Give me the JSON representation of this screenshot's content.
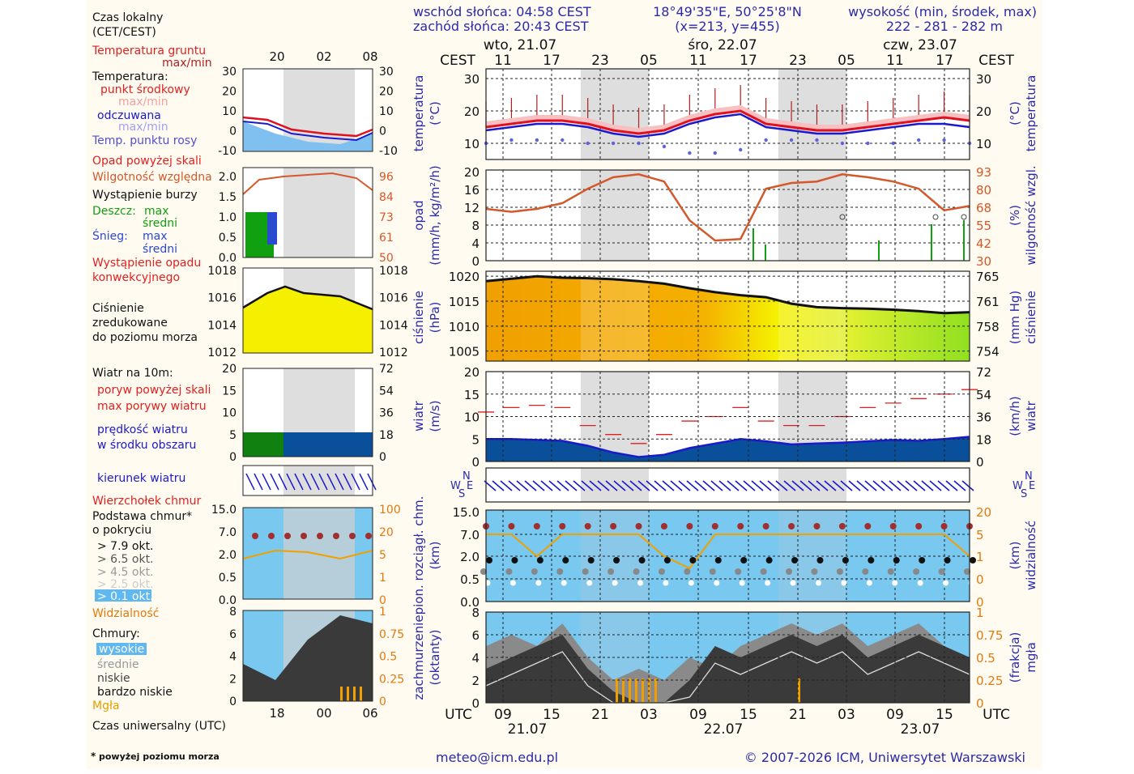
{
  "header": {
    "sunrise": "wschód słońca: 04:58 CEST",
    "sunset": "zachód słońca: 20:43 CEST",
    "coords": "18°49'35\"E, 50°25'8\"N",
    "grid": "(x=213, y=455)",
    "elevation_label": "wysokość (min, środek, max)",
    "elevation_values": "222 - 281 - 282 m"
  },
  "footer": {
    "email": "meteo@icm.edu.pl",
    "copyright": "© 2007-2026 ICM, Uniwersytet Warszawski",
    "footnote_star": "*",
    "footnote": "powyżej poziomu morza"
  },
  "time_axis": {
    "cest_label": "CEST",
    "utc_label": "UTC",
    "days_top": [
      "wto, 21.07",
      "śro, 22.07",
      "czw, 23.07"
    ],
    "hours_cest": [
      "11",
      "17",
      "23",
      "05",
      "11",
      "17",
      "23",
      "05",
      "11",
      "17"
    ],
    "hours_utc": [
      "09",
      "15",
      "21",
      "03",
      "09",
      "15",
      "21",
      "03",
      "09",
      "15"
    ],
    "days_bottom": [
      "21.07",
      "22.07",
      "23.07"
    ]
  },
  "legend": {
    "local_time_label": "Czas lokalny",
    "local_time_sub": "(CET/CEST)",
    "local_hours": [
      "20",
      "02",
      "08"
    ],
    "utc_time_label": "Czas uniwersalny (UTC)",
    "utc_hours": [
      "18",
      "00",
      "06"
    ],
    "temp": {
      "ground": "Temperatura gruntu",
      "ground_mm": "max/min",
      "title": "Temperatura:",
      "mid": "punkt środkowy",
      "mid_mm": "max/min",
      "felt": "odczuwana",
      "felt_mm": "max/min",
      "dew": "Temp. punktu rosy",
      "ticks_left": [
        "30",
        "20",
        "10",
        "0",
        "-10"
      ],
      "ticks_right": [
        "30",
        "20",
        "10",
        "0",
        "-10"
      ]
    },
    "precip": {
      "over": "Opad powyżej skali",
      "humidity": "Wilgotność względna",
      "storm": "Wystąpienie burzy",
      "rain": "Deszcz:",
      "rain_max": "max",
      "rain_avg": "średni",
      "snow": "Śnieg:",
      "snow_max": "max",
      "snow_avg": "średni",
      "convective1": "Wystąpienie opadu",
      "convective2": "konwekcyjnego",
      "ticks_left": [
        "2.0",
        "1.5",
        "1.0",
        "0.5",
        "0.0"
      ],
      "ticks_right": [
        "96",
        "84",
        "73",
        "61",
        "50"
      ]
    },
    "pressure": {
      "l1": "Ciśnienie",
      "l2": "zredukowane",
      "l3": "do poziomu morza",
      "ticks_left": [
        "1018",
        "1016",
        "1014",
        "1012"
      ],
      "ticks_right": [
        "1018",
        "1016",
        "1014",
        "1012"
      ]
    },
    "wind": {
      "title": "Wiatr na 10m:",
      "gust_over": "poryw powyżej skali",
      "gust_max": "max porywy wiatru",
      "speed1": "prędkość wiatru",
      "speed2": "w środku obszaru",
      "ticks_left": [
        "20",
        "15",
        "10",
        "5",
        "0"
      ],
      "ticks_right": [
        "72",
        "54",
        "36",
        "18",
        "0"
      ]
    },
    "direction": {
      "label": "kierunek wiatru"
    },
    "cloud": {
      "top": "Wierzchołek chmur",
      "base1": "Podstawa chmur*",
      "base2": "o pokryciu",
      "o79": "> 7.9 okt.",
      "o65": "> 6.5 okt.",
      "o45": "> 4.5 okt.",
      "o25": "> 2.5 okt.",
      "o01": "> 0.1 okt.",
      "visibility": "Widzialność",
      "ticks_left": [
        "15.0",
        "7.0",
        "2.0",
        "0.5",
        "0.0"
      ],
      "ticks_right": [
        "100",
        "20",
        "5",
        "1",
        "0"
      ]
    },
    "cover": {
      "title": "Chmury:",
      "high": "wysokie",
      "mid": "średnie",
      "low": "niskie",
      "vlow": "bardzo niskie",
      "fog": "Mgła",
      "ticks_left": [
        "8",
        "6",
        "4",
        "2",
        "0"
      ],
      "ticks_right": [
        "1",
        "0.75",
        "0.5",
        "0.25",
        "0"
      ]
    }
  },
  "panels": {
    "temp": {
      "ylabel_l1": "temperatura",
      "ylabel_l2": "(°C)",
      "ylabel_r": "temperatura",
      "ylabel_r2": "(°C)",
      "ticks_left": [
        "30",
        "20",
        "10"
      ],
      "ticks_right": [
        "30",
        "20",
        "10"
      ]
    },
    "precip": {
      "ylabel_l1": "opad",
      "ylabel_l2": "(mm/h, kg/m²/h)",
      "ylabel_r1": "(%)",
      "ylabel_r2": "wilgotność wzgl.",
      "ticks_left": [
        "20",
        "16",
        "12",
        "8",
        "4",
        "0"
      ],
      "ticks_right": [
        "93",
        "80",
        "68",
        "55",
        "42",
        "30"
      ]
    },
    "pressure": {
      "ylabel_l1": "ciśnienie",
      "ylabel_l2": "(hPa)",
      "ylabel_r1": "(mm Hg)",
      "ylabel_r2": "ciśnienie",
      "ticks_left": [
        "1020",
        "1015",
        "1010",
        "1005"
      ],
      "ticks_right": [
        "765",
        "761",
        "758",
        "754"
      ]
    },
    "wind": {
      "ylabel_l1": "wiatr",
      "ylabel_l2": "(m/s)",
      "ylabel_r1": "(km/h)",
      "ylabel_r2": "wiatr",
      "ticks_left": [
        "20",
        "15",
        "10",
        "5",
        "0"
      ],
      "ticks_right": [
        "72",
        "54",
        "36",
        "18",
        "0"
      ]
    },
    "direction": {
      "compass": [
        "N",
        "W",
        "E",
        "S"
      ]
    },
    "cloud": {
      "ylabel_l1": "pion. rozciągł. chm.",
      "ylabel_l2": "(km)",
      "ylabel_r1": "(km)",
      "ylabel_r2": "widzialność",
      "ticks_left": [
        "15.0",
        "7.0",
        "2.0",
        "0.5",
        "0.0"
      ],
      "ticks_right": [
        "20",
        "5",
        "1",
        "0"
      ]
    },
    "cover": {
      "ylabel_l1": "zachmurzenie",
      "ylabel_l2": "(oktanty)",
      "ylabel_r1": "(frakcja)",
      "ylabel_r2": "mgła",
      "ticks_left": [
        "8",
        "6",
        "4",
        "2",
        "0"
      ],
      "ticks_right": [
        "1",
        "0.75",
        "0.5",
        "0.25",
        "0"
      ]
    }
  },
  "colors": {
    "temp_line": "#e01020",
    "felt_line": "#1a1acc",
    "humidity_line": "#d4582a",
    "pressure_line": "#111111",
    "wind_fill": "#0050b0",
    "cloud_bg": "#78c8f0",
    "night_band": "#d8d8d8",
    "fog": "#f0a000"
  },
  "chart_data": [
    {
      "type": "line",
      "name": "temperatura",
      "x_hours_utc": [
        9,
        12,
        15,
        18,
        21,
        0,
        3,
        6,
        9,
        12,
        15,
        18,
        21,
        0,
        3,
        6,
        9,
        12,
        15,
        18
      ],
      "series": [
        {
          "name": "punkt środkowy",
          "values": [
            15,
            16,
            17,
            17,
            16,
            14,
            13,
            14,
            17,
            19,
            20,
            16,
            15,
            14,
            14,
            15,
            16,
            17,
            18,
            17
          ]
        },
        {
          "name": "odczuwana",
          "values": [
            14,
            15,
            16,
            16,
            15,
            13,
            12,
            13,
            16,
            18,
            19,
            15,
            14,
            13,
            13,
            14,
            15,
            16,
            16,
            15
          ]
        },
        {
          "name": "Temp. punktu rosy",
          "values": [
            10,
            11,
            11,
            11,
            10,
            10,
            10,
            9,
            7,
            7,
            8,
            11,
            11,
            11,
            10,
            10,
            10,
            11,
            11,
            10
          ]
        }
      ],
      "ylim": [
        5,
        33
      ]
    },
    {
      "type": "line",
      "name": "wilgotność",
      "series": [
        {
          "name": "Wilgotność względna",
          "values": [
            66,
            64,
            66,
            70,
            80,
            88,
            90,
            85,
            58,
            44,
            45,
            80,
            84,
            85,
            90,
            88,
            85,
            80,
            65,
            68
          ]
        }
      ],
      "ylim": [
        30,
        93
      ]
    },
    {
      "type": "area",
      "name": "ciśnienie",
      "series": [
        {
          "name": "Ciśnienie zredukowane do poziomu morza",
          "values": [
            1019,
            1019.5,
            1020,
            1019.7,
            1019.6,
            1019.4,
            1019,
            1018.5,
            1017.6,
            1016.8,
            1016.2,
            1015.8,
            1014.5,
            1013.8,
            1013.6,
            1013.5,
            1013.3,
            1013.0,
            1012.6,
            1012.8
          ]
        }
      ],
      "ylim": [
        1003,
        1021
      ]
    },
    {
      "type": "area",
      "name": "wiatr",
      "series": [
        {
          "name": "prędkość wiatru",
          "values": [
            5,
            5,
            4.8,
            4.6,
            3.5,
            2,
            1,
            1.5,
            3,
            4,
            5,
            4.5,
            3.8,
            4,
            4.2,
            4.5,
            4.8,
            4.6,
            5,
            5.5
          ]
        },
        {
          "name": "max porywy wiatru",
          "values": [
            11,
            12,
            12.5,
            12,
            8,
            6,
            4,
            6,
            9,
            10,
            12,
            9,
            8,
            8,
            10,
            12,
            13,
            14,
            15,
            16
          ]
        }
      ],
      "ylim": [
        0,
        20
      ]
    },
    {
      "type": "area",
      "name": "zachmurzenie",
      "series": [
        {
          "name": "wysokie",
          "values": [
            5,
            6,
            5,
            7,
            4,
            2,
            3,
            2,
            4,
            3,
            5,
            6,
            7,
            6,
            7,
            5,
            6,
            7,
            5,
            4
          ]
        },
        {
          "name": "niskie",
          "values": [
            3,
            4,
            5,
            6,
            3,
            1,
            0,
            0,
            2,
            5,
            4,
            5,
            6,
            5,
            6,
            4,
            5,
            6,
            5,
            4
          ]
        },
        {
          "name": "bardzo niskie",
          "values": [
            0,
            0,
            0,
            0,
            0,
            0,
            0,
            0,
            0,
            0,
            0,
            0,
            0,
            0,
            0,
            0,
            0,
            0,
            0,
            0
          ]
        }
      ],
      "ylim": [
        0,
        8
      ]
    }
  ]
}
